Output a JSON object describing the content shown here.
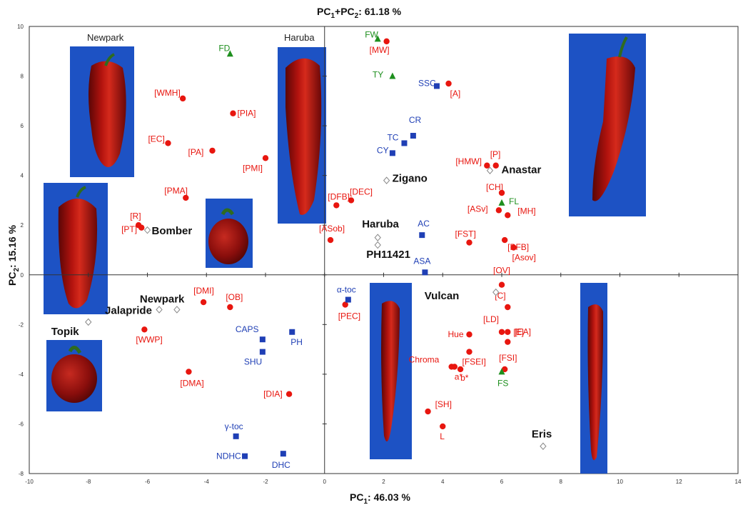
{
  "chart_data": {
    "type": "scatter",
    "title": "PC",
    "title_sub1": "1",
    "title_mid": "+PC",
    "title_sub2": "2",
    "title_value": ": 61.18 %",
    "x_axis_label": {
      "prefix": "PC",
      "sub": "1",
      "value": ": 46.03 %"
    },
    "y_axis_label": {
      "prefix": "PC",
      "sub": "2",
      "value": ": 15.16 %"
    },
    "xlim": [
      -10,
      14
    ],
    "ylim": [
      -8,
      10
    ],
    "x_ticks": [
      "-10",
      "-8",
      "-6",
      "-4",
      "-2",
      "0",
      "2",
      "4",
      "6",
      "8",
      "10",
      "12",
      "14"
    ],
    "y_ticks": [
      "10",
      "8",
      "6",
      "4",
      "2",
      "0",
      "-2",
      "-4",
      "-6",
      "-8"
    ],
    "grid": false,
    "colors": {
      "red": "#e8160f",
      "blue": "#1f3fb5",
      "green": "#1e8f1e",
      "cultivar": "#888888",
      "black": "#111111"
    },
    "series": [
      {
        "marker": "circle",
        "color": "#e8160f",
        "points": [
          {
            "label": "[MW]",
            "x": 2.1,
            "y": 9.4
          },
          {
            "label": "[A]",
            "x": 4.2,
            "y": 7.7
          },
          {
            "label": "[WMH]",
            "x": -4.8,
            "y": 7.1
          },
          {
            "label": "[PIA]",
            "x": -3.1,
            "y": 6.5
          },
          {
            "label": "[EC]",
            "x": -5.3,
            "y": 5.3
          },
          {
            "label": "[PA]",
            "x": -3.8,
            "y": 5.0
          },
          {
            "label": "[PMI]",
            "x": -2.0,
            "y": 4.7
          },
          {
            "label": "[HMW]",
            "x": 5.5,
            "y": 4.4
          },
          {
            "label": "[P]",
            "x": 5.8,
            "y": 4.4
          },
          {
            "label": "[PMA]",
            "x": -4.7,
            "y": 3.1
          },
          {
            "label": "[DFB]",
            "x": 0.4,
            "y": 2.8
          },
          {
            "label": "[DEC]",
            "x": 0.9,
            "y": 3.0
          },
          {
            "label": "[CH]",
            "x": 6.0,
            "y": 3.3
          },
          {
            "label": "[MH]",
            "x": 6.2,
            "y": 2.4
          },
          {
            "label": "[ASv]",
            "x": 5.9,
            "y": 2.6
          },
          {
            "label": "[PFB]",
            "x": 6.1,
            "y": 1.4
          },
          {
            "label": "[R]",
            "x": -6.2,
            "y": 1.9
          },
          {
            "label": "[PT]",
            "x": -6.3,
            "y": 2.0
          },
          {
            "label": "[ASob]",
            "x": 0.2,
            "y": 1.4
          },
          {
            "label": "[FST]",
            "x": 4.9,
            "y": 1.3
          },
          {
            "label": "[OV]",
            "x": 6.0,
            "y": -0.4
          },
          {
            "label": "[Asov]",
            "x": 6.4,
            "y": 1.1
          },
          {
            "label": "[DMI]",
            "x": -4.1,
            "y": -1.1
          },
          {
            "label": "[OB]",
            "x": -3.2,
            "y": -1.3
          },
          {
            "label": "[PEC]",
            "x": 0.7,
            "y": -1.2
          },
          {
            "label": "[C]",
            "x": 6.2,
            "y": -1.3
          },
          {
            "label": "[E]",
            "x": 6.2,
            "y": -2.3
          },
          {
            "label": "[WWP]",
            "x": -6.1,
            "y": -2.2
          },
          {
            "label": "Hue",
            "x": 4.9,
            "y": -2.4
          },
          {
            "label": "[LD]",
            "x": 6.0,
            "y": -2.3
          },
          {
            "label": "[EA]",
            "x": 6.2,
            "y": -2.7
          },
          {
            "label": "[FSEI]",
            "x": 4.9,
            "y": -3.1
          },
          {
            "label": "[FSI]",
            "x": 6.1,
            "y": -3.8
          },
          {
            "label": "Chroma",
            "x": 4.3,
            "y": -3.7
          },
          {
            "label": "a*",
            "x": 4.4,
            "y": -3.7
          },
          {
            "label": "b*",
            "x": 4.6,
            "y": -3.8
          },
          {
            "label": "[DMA]",
            "x": -4.6,
            "y": -3.9
          },
          {
            "label": "[DIA]",
            "x": -1.2,
            "y": -4.8
          },
          {
            "label": "[SH]",
            "x": 3.5,
            "y": -5.5
          },
          {
            "label": "L",
            "x": 4.0,
            "y": -6.1
          }
        ]
      },
      {
        "marker": "square",
        "color": "#1f3fb5",
        "points": [
          {
            "label": "SSC",
            "x": 3.8,
            "y": 7.6
          },
          {
            "label": "CR",
            "x": 3.0,
            "y": 5.6
          },
          {
            "label": "TC",
            "x": 2.7,
            "y": 5.3
          },
          {
            "label": "CY",
            "x": 2.3,
            "y": 4.9
          },
          {
            "label": "AC",
            "x": 3.3,
            "y": 1.6
          },
          {
            "label": "ASA",
            "x": 3.4,
            "y": 0.1
          },
          {
            "label": "α-toc",
            "x": 0.8,
            "y": -1.0
          },
          {
            "label": "CAPS",
            "x": -2.1,
            "y": -2.6
          },
          {
            "label": "PH",
            "x": -1.1,
            "y": -2.3
          },
          {
            "label": "SHU",
            "x": -2.1,
            "y": -3.1
          },
          {
            "label": "γ-toc",
            "x": -3.0,
            "y": -6.5
          },
          {
            "label": "NDHC",
            "x": -2.7,
            "y": -7.3
          },
          {
            "label": "DHC",
            "x": -1.4,
            "y": -7.2
          }
        ]
      },
      {
        "marker": "triangle",
        "color": "#1e8f1e",
        "points": [
          {
            "label": "FW",
            "x": 1.8,
            "y": 9.5
          },
          {
            "label": "FD",
            "x": -3.2,
            "y": 8.9
          },
          {
            "label": "TY",
            "x": 2.3,
            "y": 8.0
          },
          {
            "label": "FL",
            "x": 6.0,
            "y": 2.9
          },
          {
            "label": "FS",
            "x": 6.0,
            "y": -3.9
          }
        ]
      },
      {
        "marker": "diamond",
        "color": "#888888",
        "points": [
          {
            "label": "Anastar",
            "x": 5.6,
            "y": 4.2
          },
          {
            "label": "Zigano",
            "x": 2.1,
            "y": 3.8
          },
          {
            "label": "Bomber",
            "x": -6.0,
            "y": 1.8
          },
          {
            "label": "Haruba",
            "x": 1.8,
            "y": 1.5
          },
          {
            "label": "PH11421",
            "x": 1.8,
            "y": 1.2
          },
          {
            "label": "Vulcan",
            "x": 5.8,
            "y": -0.7
          },
          {
            "label": "Newpark",
            "x": -5.0,
            "y": -1.4
          },
          {
            "label": "Jalapride",
            "x": -5.6,
            "y": -1.4
          },
          {
            "label": "Topik",
            "x": -8.0,
            "y": -1.9
          },
          {
            "label": "Eris",
            "x": 7.4,
            "y": -6.9
          }
        ]
      }
    ],
    "image_labels": [
      "Newpark",
      "Haruba"
    ]
  }
}
